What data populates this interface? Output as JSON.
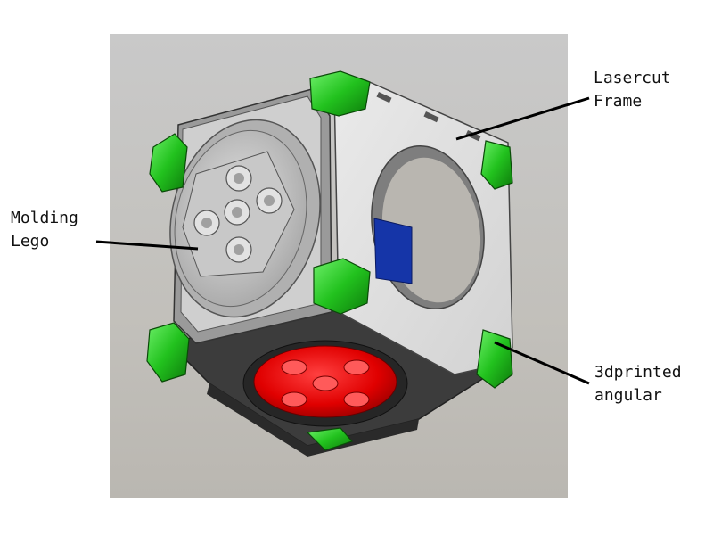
{
  "figure": {
    "background": "#ffffff",
    "panel_color": "#c4c2bd"
  },
  "colors": {
    "frame": "#dedede",
    "frame_edge": "#4a4a4a",
    "dark_plate": "#3c3c3c",
    "corner_green": "#22c21e",
    "lego_red": "#e00000",
    "inner_blue": "#1535a8",
    "lego_grey": "#c8c8c8"
  },
  "labels": {
    "lasercut_frame": {
      "line1": "Lasercut",
      "line2": "Frame"
    },
    "molding_lego": {
      "line1": "Molding",
      "line2": "Lego"
    },
    "printed_angular": {
      "line1": "3dprinted",
      "line2": "angular"
    }
  }
}
